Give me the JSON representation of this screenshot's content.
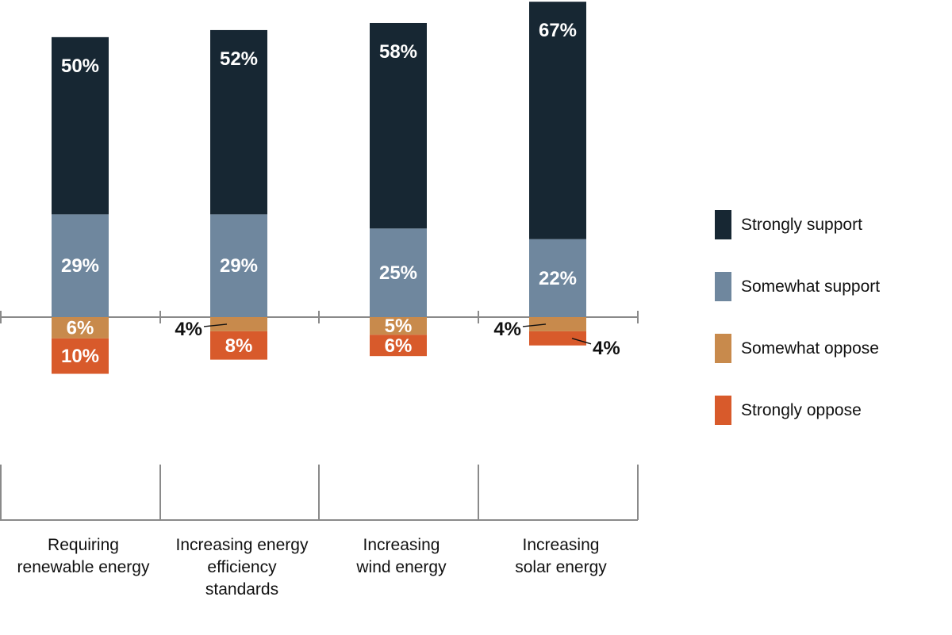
{
  "chart_data": {
    "type": "bar",
    "stacked": "diverging",
    "categories": [
      [
        "Requiring",
        "renewable energy"
      ],
      [
        "Increasing energy",
        "efficiency",
        "standards"
      ],
      [
        "Increasing",
        "wind energy"
      ],
      [
        "Increasing",
        "solar energy"
      ]
    ],
    "series": [
      {
        "name": "Strongly support",
        "color": "#172733",
        "side": "support",
        "values": [
          50,
          52,
          58,
          67
        ],
        "labels": [
          "50%",
          "52%",
          "58%",
          "67%"
        ]
      },
      {
        "name": "Somewhat support",
        "color": "#6f879e",
        "side": "support",
        "values": [
          29,
          29,
          25,
          22
        ],
        "labels": [
          "29%",
          "29%",
          "25%",
          "22%"
        ]
      },
      {
        "name": "Somewhat oppose",
        "color": "#c88a4c",
        "side": "oppose",
        "values": [
          6,
          4,
          5,
          4
        ],
        "labels": [
          "6%",
          "4%",
          "5%",
          "4%"
        ]
      },
      {
        "name": "Strongly oppose",
        "color": "#d85a2b",
        "side": "oppose",
        "values": [
          10,
          8,
          6,
          4
        ],
        "labels": [
          "10%",
          "8%",
          "6%",
          "4%"
        ]
      }
    ],
    "legend_position": "right",
    "grid": false
  }
}
